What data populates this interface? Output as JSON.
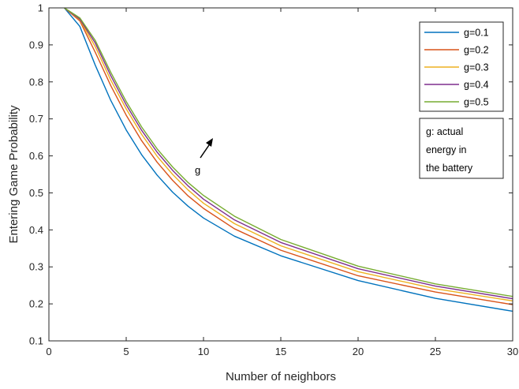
{
  "chart_data": {
    "type": "line",
    "xlabel": "Number of neighbors",
    "ylabel": "Entering Game Probability",
    "xlim": [
      0,
      30
    ],
    "ylim": [
      0.1,
      1
    ],
    "xticks": [
      0,
      5,
      10,
      15,
      20,
      25,
      30
    ],
    "yticks": [
      0.1,
      0.2,
      0.3,
      0.4,
      0.5,
      0.6,
      0.7,
      0.8,
      0.9,
      1
    ],
    "grid": false,
    "legend_position": "top-right",
    "x": [
      1,
      2,
      3,
      4,
      5,
      6,
      7,
      8,
      9,
      10,
      12,
      15,
      20,
      25,
      30
    ],
    "series": [
      {
        "name": "g=0.1",
        "color": "#0072BD",
        "values": [
          1.0,
          0.95,
          0.845,
          0.75,
          0.67,
          0.603,
          0.548,
          0.502,
          0.464,
          0.432,
          0.383,
          0.33,
          0.263,
          0.215,
          0.18
        ]
      },
      {
        "name": "g=0.2",
        "color": "#D95319",
        "values": [
          1.0,
          0.965,
          0.88,
          0.79,
          0.71,
          0.641,
          0.583,
          0.534,
          0.492,
          0.458,
          0.403,
          0.345,
          0.276,
          0.232,
          0.198
        ]
      },
      {
        "name": "g=0.3",
        "color": "#EDB120",
        "values": [
          1.0,
          0.968,
          0.895,
          0.805,
          0.727,
          0.658,
          0.599,
          0.55,
          0.508,
          0.472,
          0.417,
          0.357,
          0.287,
          0.241,
          0.208
        ]
      },
      {
        "name": "g=0.4",
        "color": "#7E2F8E",
        "values": [
          1.0,
          0.97,
          0.905,
          0.817,
          0.738,
          0.669,
          0.61,
          0.561,
          0.519,
          0.483,
          0.427,
          0.366,
          0.295,
          0.248,
          0.214
        ]
      },
      {
        "name": "g=0.5",
        "color": "#77AC30",
        "values": [
          1.0,
          0.973,
          0.912,
          0.826,
          0.747,
          0.678,
          0.619,
          0.57,
          0.528,
          0.493,
          0.437,
          0.374,
          0.302,
          0.254,
          0.22
        ]
      }
    ],
    "annotations": {
      "note_lines": [
        "g: actual",
        "energy in",
        "the battery"
      ],
      "arrow_label": "g"
    }
  }
}
